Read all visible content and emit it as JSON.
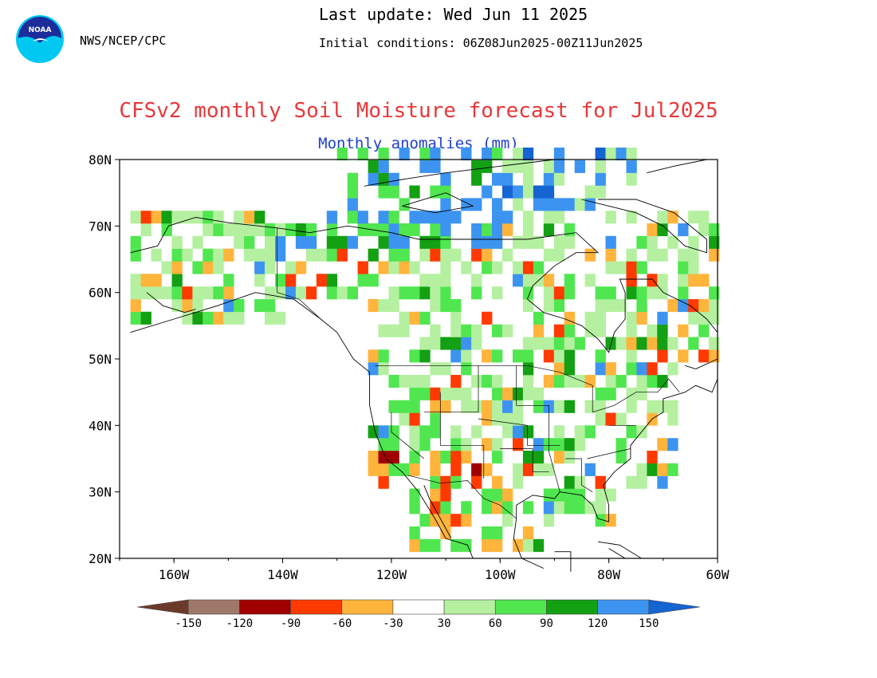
{
  "header": {
    "agency": "NWS/NCEP/CPC",
    "last_update": "Last update: Wed Jun 11 2025",
    "initial_conditions": "Initial conditions: 06Z08Jun2025-00Z11Jun2025",
    "logo_text": "NOAA"
  },
  "title": "CFSv2 monthly Soil Moisture forecast for Jul2025",
  "subtitle": "Monthly anomalies (mm)",
  "map": {
    "lon_range": [
      -170,
      -60
    ],
    "lat_range": [
      20,
      80
    ],
    "lat_labels": [
      {
        "lat": 80,
        "label": "80N"
      },
      {
        "lat": 70,
        "label": "70N"
      },
      {
        "lat": 60,
        "label": "60N"
      },
      {
        "lat": 50,
        "label": "50N"
      },
      {
        "lat": 40,
        "label": "40N"
      },
      {
        "lat": 30,
        "label": "30N"
      },
      {
        "lat": 20,
        "label": "20N"
      }
    ],
    "lon_labels": [
      {
        "lon": -160,
        "label": "160W"
      },
      {
        "lon": -140,
        "label": "140W"
      },
      {
        "lon": -120,
        "label": "120W"
      },
      {
        "lon": -100,
        "label": "100W"
      },
      {
        "lon": -80,
        "label": "80W"
      },
      {
        "lon": -60,
        "label": "60W"
      }
    ]
  },
  "colorbar": {
    "bins": [
      {
        "color": "#6b3a2a"
      },
      {
        "color": "#a0786a"
      },
      {
        "color": "#a00000"
      },
      {
        "color": "#ff3a00"
      },
      {
        "color": "#ffb43c"
      },
      {
        "color": "#ffffff"
      },
      {
        "color": "#b4f0a0"
      },
      {
        "color": "#50e650"
      },
      {
        "color": "#13a013"
      },
      {
        "color": "#3c94f0"
      },
      {
        "color": "#1464d2"
      }
    ],
    "ticks": [
      "-150",
      "-120",
      "-90",
      "-60",
      "-30",
      "30",
      "60",
      "90",
      "120",
      "150"
    ]
  }
}
